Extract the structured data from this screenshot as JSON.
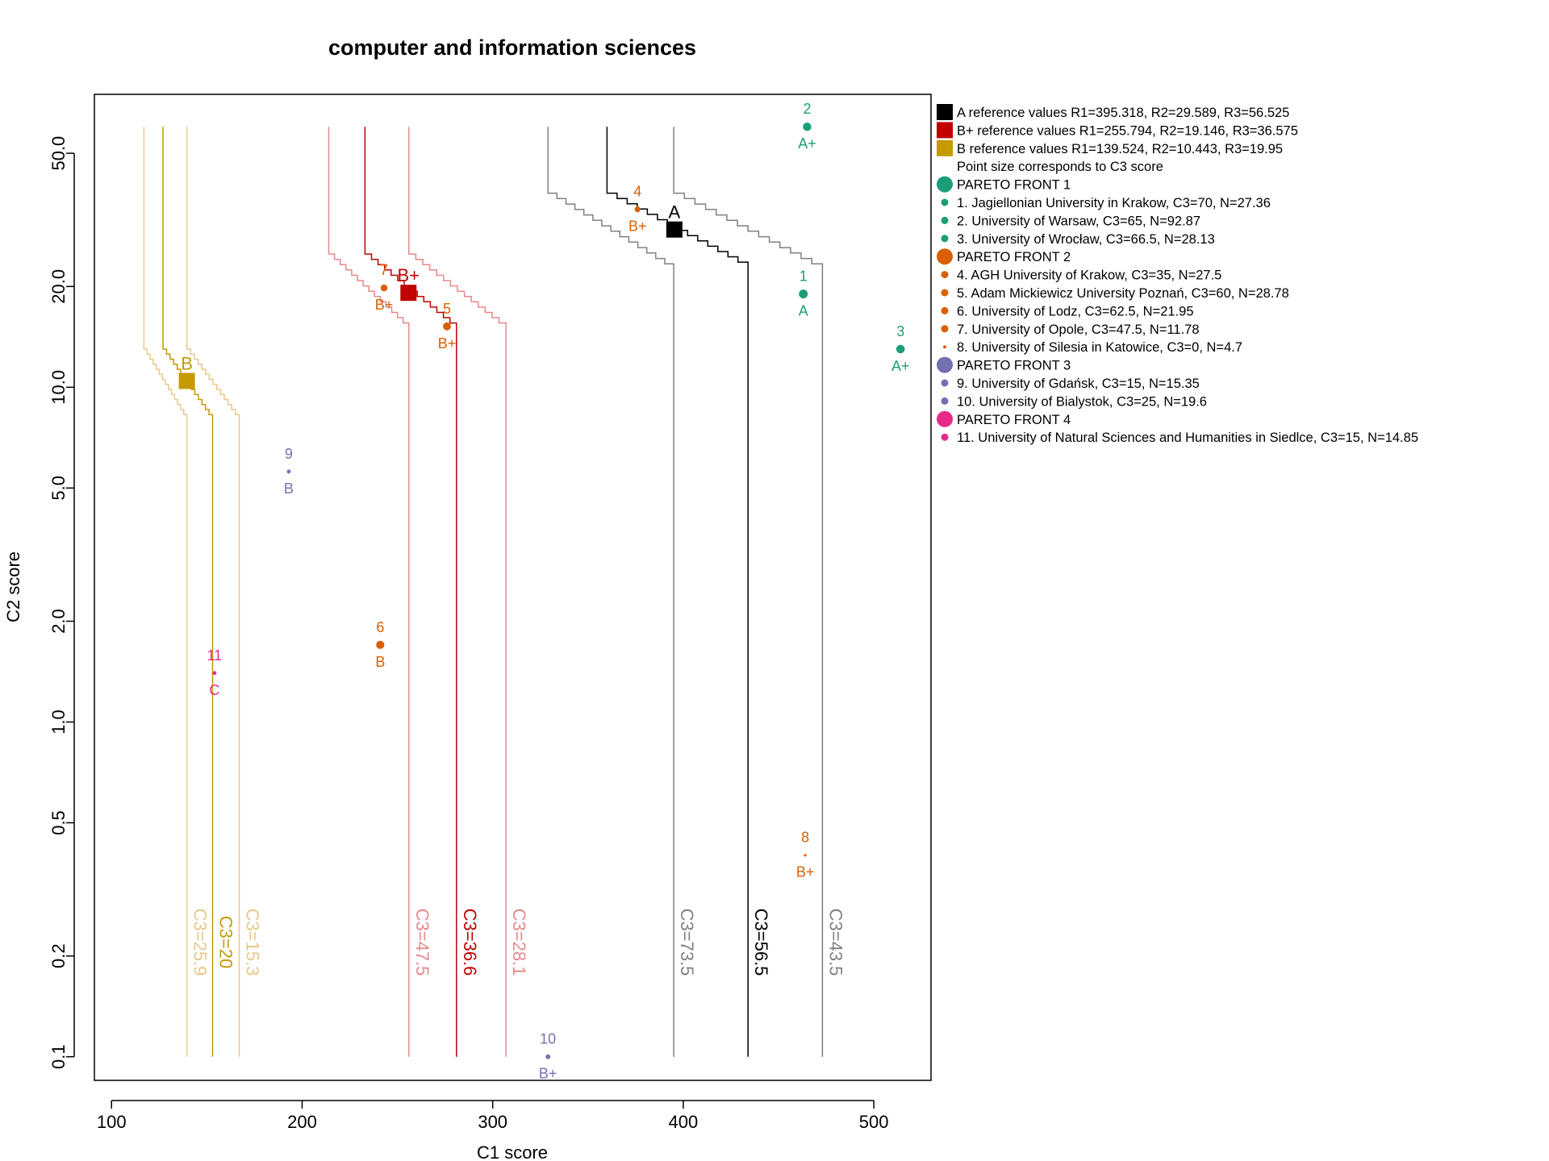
{
  "chart_data": {
    "type": "scatter",
    "title": "computer and information sciences",
    "xlabel": "C1 score",
    "ylabel": "C2 score",
    "xlim": [
      91,
      530
    ],
    "ylim": [
      0.085,
      75
    ],
    "y_scale": "log",
    "x_ticks": [
      100,
      200,
      300,
      400,
      500
    ],
    "y_ticks": [
      0.1,
      0.2,
      0.5,
      1.0,
      2.0,
      5.0,
      10.0,
      20.0,
      50.0
    ],
    "y_tick_labels": [
      "0.1",
      "0.2",
      "0.5",
      "1.0",
      "2.0",
      "5.0",
      "10.0",
      "20.0",
      "50.0"
    ],
    "grid": false,
    "legend_position": "right, outside plot",
    "colors": {
      "A": "#000000",
      "A_band": "#808080",
      "Bplus": "#c00000",
      "Bplus_band": "#e8888c",
      "B": "#c49a00",
      "B_band": "#e8c88a",
      "front1": "#1b9e77",
      "front2": "#d95f02",
      "front3": "#7570b3",
      "front4": "#e7298a"
    },
    "reference_points": [
      {
        "label": "A",
        "x": 395.318,
        "y": 29.589,
        "color": "#000000"
      },
      {
        "label": "B+",
        "x": 255.794,
        "y": 19.146,
        "color": "#c00000"
      },
      {
        "label": "B",
        "x": 139.524,
        "y": 10.443,
        "color": "#c49a00"
      }
    ],
    "contours": [
      {
        "label": "C3=73.5",
        "color": "#808080",
        "x_top": 329,
        "x_bottom": 395,
        "y_knee_top": 38,
        "y_knee_bottom": 22.5
      },
      {
        "label": "C3=56.5",
        "color": "#000000",
        "x_top": 360,
        "x_bottom": 434,
        "y_knee_top": 38,
        "y_knee_bottom": 22.8
      },
      {
        "label": "C3=43.5",
        "color": "#808080",
        "x_top": 395,
        "x_bottom": 473,
        "y_knee_top": 38,
        "y_knee_bottom": 22.5
      },
      {
        "label": "C3=47.5",
        "color": "#e8888c",
        "x_top": 214,
        "x_bottom": 256,
        "y_knee_top": 25,
        "y_knee_bottom": 15
      },
      {
        "label": "C3=36.6",
        "color": "#c00000",
        "x_top": 233,
        "x_bottom": 281,
        "y_knee_top": 25,
        "y_knee_bottom": 15
      },
      {
        "label": "C3=28.1",
        "color": "#e8888c",
        "x_top": 256,
        "x_bottom": 307,
        "y_knee_top": 25,
        "y_knee_bottom": 15
      },
      {
        "label": "C3=25.9",
        "color": "#e8c88a",
        "x_top": 117,
        "x_bottom": 139.5,
        "y_knee_top": 13,
        "y_knee_bottom": 8
      },
      {
        "label": "C3=20",
        "color": "#c49a00",
        "x_top": 127,
        "x_bottom": 153,
        "y_knee_top": 13,
        "y_knee_bottom": 8
      },
      {
        "label": "C3=15.3",
        "color": "#e8c88a",
        "x_top": 139.5,
        "x_bottom": 167,
        "y_knee_top": 13,
        "y_knee_bottom": 8
      }
    ],
    "contour_y_top": 60,
    "contour_y_bottom": 0.1,
    "contour_label_y": 0.22,
    "points": [
      {
        "id": "1",
        "grade": "A",
        "x": 463,
        "y": 19,
        "c3": 70,
        "front": 1
      },
      {
        "id": "2",
        "grade": "A+",
        "x": 465,
        "y": 60,
        "c3": 65,
        "front": 1
      },
      {
        "id": "3",
        "grade": "A+",
        "x": 514,
        "y": 13,
        "c3": 66.5,
        "front": 1
      },
      {
        "id": "4",
        "grade": "B+",
        "x": 376,
        "y": 34,
        "c3": 35,
        "front": 2
      },
      {
        "id": "5",
        "grade": "B+",
        "x": 276,
        "y": 15.2,
        "c3": 60,
        "front": 2
      },
      {
        "id": "6",
        "grade": "B",
        "x": 241,
        "y": 1.7,
        "c3": 62.5,
        "front": 2
      },
      {
        "id": "7",
        "grade": "B+",
        "x": 243,
        "y": 19.8,
        "c3": 47.5,
        "front": 2
      },
      {
        "id": "8",
        "grade": "B+",
        "x": 464,
        "y": 0.4,
        "c3": 0,
        "front": 2
      },
      {
        "id": "9",
        "grade": "B",
        "x": 193,
        "y": 5.6,
        "c3": 15,
        "front": 3
      },
      {
        "id": "10",
        "grade": "B+",
        "x": 329,
        "y": 0.1,
        "c3": 25,
        "front": 3
      },
      {
        "id": "11",
        "grade": "C",
        "x": 154,
        "y": 1.4,
        "c3": 15,
        "front": 4
      }
    ],
    "legend": [
      {
        "kind": "square",
        "color": "#000000",
        "text": "A reference values R1=395.318, R2=29.589, R3=56.525"
      },
      {
        "kind": "square",
        "color": "#c00000",
        "text": "B+ reference values R1=255.794, R2=19.146, R3=36.575"
      },
      {
        "kind": "square",
        "color": "#c49a00",
        "text": "B reference values R1=139.524, R2=10.443, R3=19.95"
      },
      {
        "kind": "none",
        "color": "",
        "text": "Point size corresponds to C3 score"
      },
      {
        "kind": "big",
        "color": "#1b9e77",
        "text": "PARETO FRONT 1"
      },
      {
        "kind": "small",
        "color": "#1b9e77",
        "text": "1. Jagiellonian University in Krakow, C3=70, N=27.36"
      },
      {
        "kind": "small",
        "color": "#1b9e77",
        "text": "2. University of Warsaw, C3=65, N=92.87"
      },
      {
        "kind": "small",
        "color": "#1b9e77",
        "text": "3. University of Wrocław, C3=66.5, N=28.13"
      },
      {
        "kind": "big",
        "color": "#d95f02",
        "text": "PARETO FRONT 2"
      },
      {
        "kind": "small",
        "color": "#d95f02",
        "text": "4. AGH University of Krakow, C3=35, N=27.5"
      },
      {
        "kind": "small",
        "color": "#d95f02",
        "text": "5. Adam Mickiewicz University Poznań, C3=60, N=28.78"
      },
      {
        "kind": "small",
        "color": "#d95f02",
        "text": "6. University of Lodz, C3=62.5, N=21.95"
      },
      {
        "kind": "small",
        "color": "#d95f02",
        "text": "7. University of Opole, C3=47.5, N=11.78"
      },
      {
        "kind": "tiny",
        "color": "#d95f02",
        "text": "8. University of Silesia in Katowice, C3=0, N=4.7"
      },
      {
        "kind": "big",
        "color": "#7570b3",
        "text": "PARETO FRONT 3"
      },
      {
        "kind": "small",
        "color": "#7570b3",
        "text": "9. University of Gdańsk, C3=15, N=15.35"
      },
      {
        "kind": "small",
        "color": "#7570b3",
        "text": "10. University of Bialystok, C3=25, N=19.6"
      },
      {
        "kind": "big",
        "color": "#e7298a",
        "text": "PARETO FRONT 4"
      },
      {
        "kind": "small",
        "color": "#e7298a",
        "text": "11. University of Natural Sciences and Humanities in Siedlce, C3=15, N=14.85"
      }
    ]
  }
}
